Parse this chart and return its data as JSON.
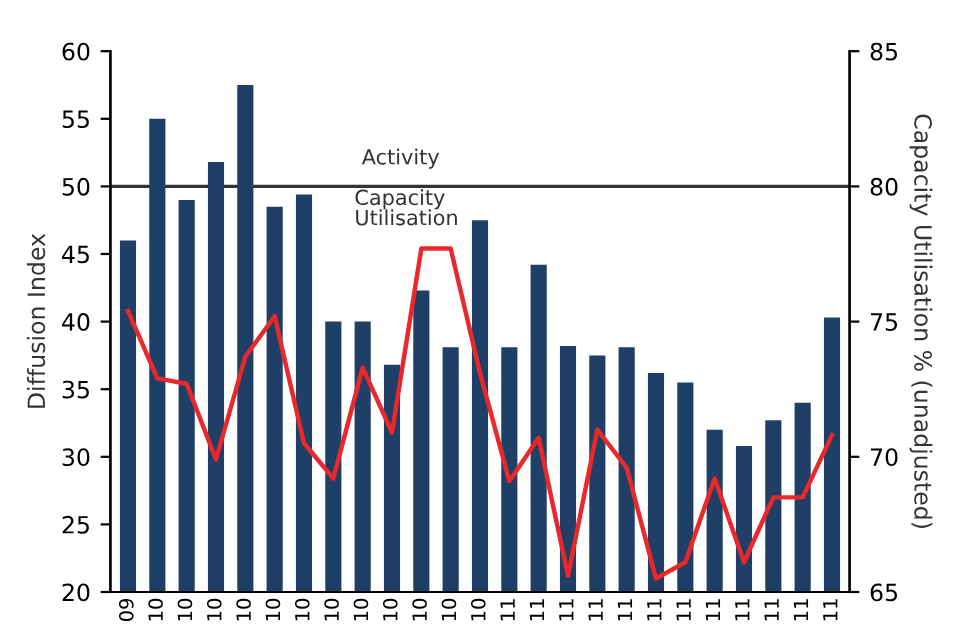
{
  "chart_data": {
    "type": "bar",
    "categories": [
      "09",
      "10",
      "10",
      "10",
      "10",
      "10",
      "10",
      "10",
      "10",
      "10",
      "10",
      "10",
      "10",
      "11",
      "11",
      "11",
      "11",
      "11",
      "11",
      "11",
      "11",
      "11",
      "11",
      "11",
      "11"
    ],
    "series": [
      {
        "color": "#1f3f66",
        "values": [
          46,
          55,
          49,
          51.8,
          57.5,
          48.5,
          49.4,
          40,
          40,
          36.8,
          42.3,
          38.1,
          47.5,
          38.1,
          44.2,
          38.2,
          37.5,
          38.1,
          36.2,
          35.5,
          32,
          30.8,
          32.7,
          34,
          40.3
        ]
      },
      {
        "type": "line",
        "axis": "y2",
        "color": "#e8282a",
        "values": [
          75.4,
          72.9,
          72.7,
          69.9,
          73.7,
          75.2,
          70.5,
          69.2,
          73.3,
          70.9,
          77.7,
          77.7,
          73.1,
          69.1,
          70.7,
          65.6,
          71.0,
          69.6,
          65.5,
          66.1,
          69.2,
          66.1,
          68.5,
          68.5,
          70.8
        ]
      }
    ],
    "ylabel": "Diffusion Index",
    "y2label": "Capacity Utilisation % (unadjusted)",
    "ylim": [
      20,
      60
    ],
    "yticks": [
      20,
      25,
      30,
      35,
      40,
      45,
      50,
      55,
      60
    ],
    "y2lim": [
      65,
      85
    ],
    "y2ticks": [
      65,
      70,
      75,
      80,
      85
    ],
    "ref_lines": [
      {
        "axis": "y",
        "value": 50,
        "color": "#333333"
      }
    ],
    "annotations": [
      "Activity",
      "Capacity\nUtilisation"
    ],
    "grid": false,
    "legend": false
  }
}
